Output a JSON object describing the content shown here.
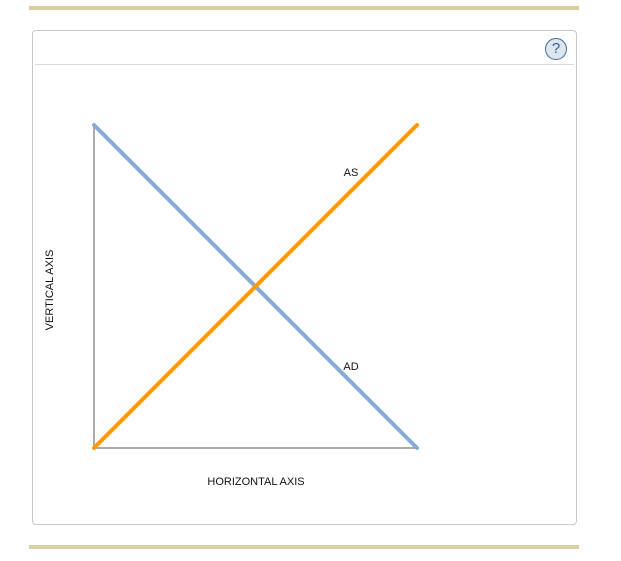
{
  "help_button": {
    "label": "?"
  },
  "chart_data": {
    "type": "line",
    "xlabel": "HORIZONTAL AXIS",
    "ylabel": "VERTICAL AXIS",
    "xlim": [
      0,
      10
    ],
    "ylim": [
      0,
      10
    ],
    "grid": false,
    "series": [
      {
        "name": "AD",
        "color": "#86acd5",
        "points": [
          [
            0,
            10
          ],
          [
            10,
            0
          ]
        ]
      },
      {
        "name": "AS",
        "color": "#ff9900",
        "points": [
          [
            0,
            0
          ],
          [
            10,
            10
          ]
        ]
      }
    ]
  },
  "colors": {
    "rule": "#d9cfa1",
    "axis": "#aaaaaa"
  }
}
